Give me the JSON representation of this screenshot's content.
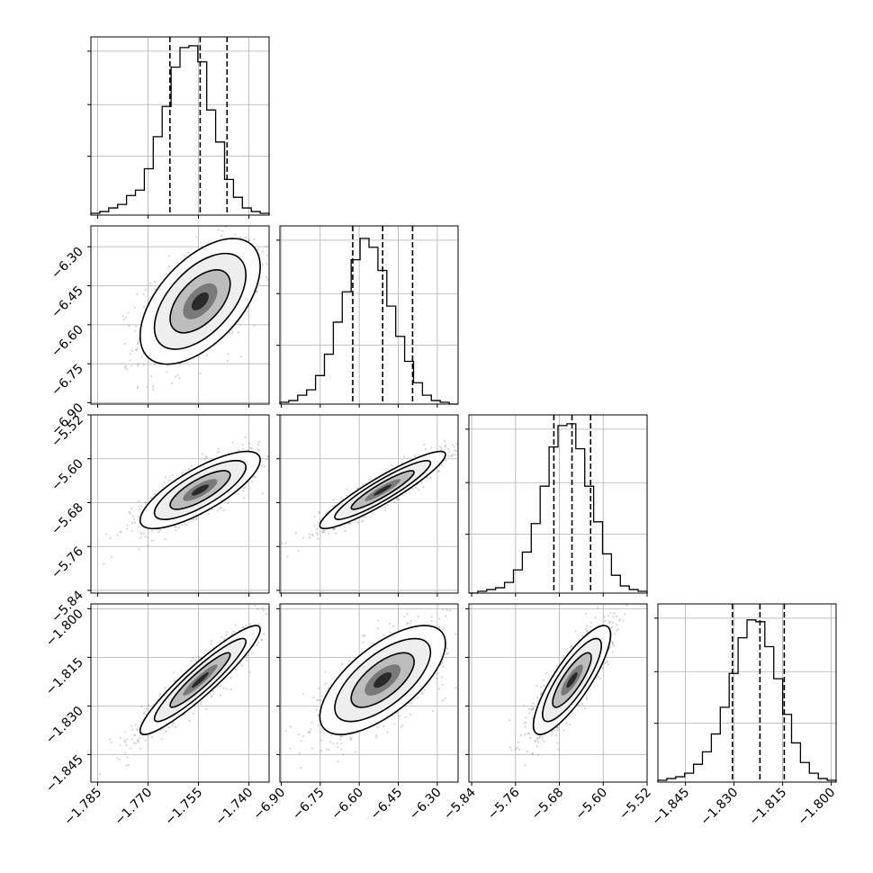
{
  "chart_data": {
    "type": "corner",
    "n_params": 4,
    "grid": true,
    "quantiles": [
      0.16,
      0.5,
      0.84
    ],
    "params": [
      {
        "range": [
          -1.787,
          -1.734
        ],
        "ticks": [
          "−1.785",
          "−1.770",
          "−1.755",
          "−1.740"
        ],
        "tick_values": [
          -1.785,
          -1.77,
          -1.755,
          -1.74
        ],
        "quantile_values": [
          -1.7635,
          -1.7545,
          -1.7465
        ],
        "hist_edges": [
          -1.787,
          -1.734
        ],
        "hist_counts": [
          0.01,
          0.02,
          0.04,
          0.06,
          0.11,
          0.14,
          0.26,
          0.44,
          0.61,
          0.83,
          0.94,
          0.95,
          0.86,
          0.59,
          0.41,
          0.2,
          0.1,
          0.04,
          0.02,
          0.01
        ]
      },
      {
        "range": [
          -6.905,
          -6.22
        ],
        "ticks": [
          "−6.90",
          "−6.75",
          "−6.60",
          "−6.45",
          "−6.30"
        ],
        "tick_values": [
          -6.9,
          -6.75,
          -6.6,
          -6.45,
          -6.3
        ],
        "quantile_values": [
          -6.625,
          -6.51,
          -6.395
        ],
        "hist_edges": [
          -6.905,
          -6.22
        ],
        "hist_counts": [
          0.01,
          0.02,
          0.05,
          0.08,
          0.16,
          0.28,
          0.46,
          0.63,
          0.81,
          0.93,
          0.88,
          0.75,
          0.55,
          0.38,
          0.24,
          0.12,
          0.05,
          0.02,
          0.01,
          0.0
        ]
      },
      {
        "range": [
          -5.845,
          -5.52
        ],
        "ticks": [
          "−5.84",
          "−5.76",
          "−5.68",
          "−5.60",
          "−5.52"
        ],
        "tick_values": [
          -5.84,
          -5.76,
          -5.68,
          -5.6,
          -5.52
        ],
        "quantile_values": [
          -5.69,
          -5.657,
          -5.623
        ],
        "hist_edges": [
          -5.845,
          -5.52
        ],
        "hist_counts": [
          0.0,
          0.01,
          0.02,
          0.03,
          0.06,
          0.13,
          0.23,
          0.39,
          0.6,
          0.82,
          0.94,
          0.95,
          0.81,
          0.6,
          0.4,
          0.22,
          0.1,
          0.04,
          0.02,
          0.01
        ]
      },
      {
        "range": [
          -1.8535,
          -1.7985
        ],
        "ticks": [
          "−1.845",
          "−1.830",
          "−1.815",
          "−1.800"
        ],
        "tick_values": [
          -1.845,
          -1.83,
          -1.815,
          -1.8
        ],
        "quantile_values": [
          -1.8305,
          -1.822,
          -1.8145
        ],
        "hist_edges": [
          -1.8535,
          -1.7985
        ],
        "hist_counts": [
          0.01,
          0.02,
          0.03,
          0.05,
          0.1,
          0.17,
          0.27,
          0.42,
          0.61,
          0.81,
          0.91,
          0.9,
          0.76,
          0.58,
          0.38,
          0.22,
          0.11,
          0.05,
          0.02,
          0.01
        ]
      }
    ],
    "correlations": [
      [
        1.0,
        0.55,
        0.78,
        0.93
      ],
      [
        0.55,
        1.0,
        0.92,
        0.67
      ],
      [
        0.78,
        0.92,
        1.0,
        0.83
      ],
      [
        0.93,
        0.67,
        0.83,
        1.0
      ]
    ],
    "colors": {
      "axes": "#000000",
      "grid": "#b0b0b0",
      "samples": "#808080",
      "density": "#000000"
    }
  }
}
